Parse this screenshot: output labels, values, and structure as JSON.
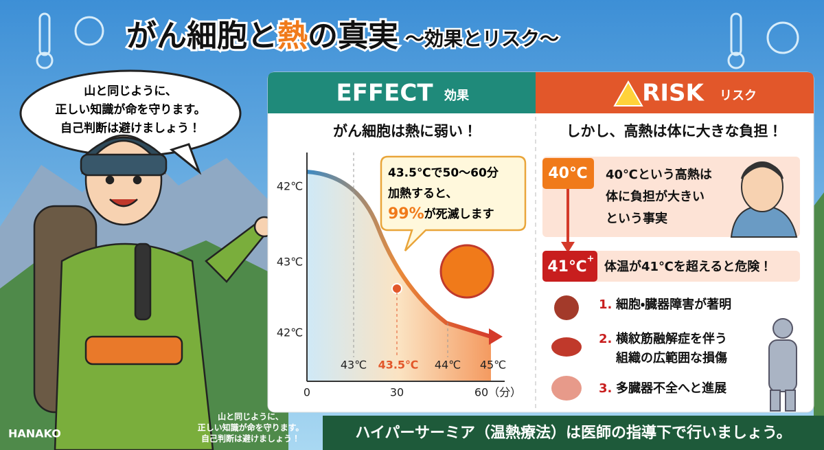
{
  "title": {
    "part1": "がん細胞と",
    "hot": "熱",
    "part2": "の真実",
    "subtitle": "〜効果とリスク〜"
  },
  "speech_bubble": [
    "山と同じように、",
    "正しい知識が命を守ります。",
    "自己判断は避けましょう！"
  ],
  "character": {
    "name": "HANAKO",
    "caption": [
      "山と同じように、",
      "正しい知識が命を守ります。",
      "自己判断は避けましょう！"
    ]
  },
  "effect": {
    "header": "EFFECT",
    "header_jp": "効果",
    "heading": "がん細胞は熱に弱い！",
    "y_labels": [
      "42℃",
      "43℃",
      "42℃"
    ],
    "temp_labels": [
      "43℃",
      "43.5℃",
      "44℃",
      "45℃"
    ],
    "x_labels": [
      "0",
      "30",
      "60（分）"
    ],
    "callout": {
      "line1": "43.5℃で50〜60分",
      "line2": "加熱すると、",
      "highlight": "99%",
      "line3": "が死滅します"
    }
  },
  "risk": {
    "header": "RISK",
    "header_jp": "リスク",
    "heading": "しかし、高熱は体に大きな負担！",
    "fever": {
      "badge": "40℃",
      "lines": [
        "40℃という高熱は",
        "体に負担が大きい",
        "という事実"
      ]
    },
    "danger": {
      "badge": "41℃",
      "sup": "+",
      "text": "体温が41℃を超えると危険！"
    },
    "items": [
      {
        "num": "1.",
        "lines": [
          "細胞・臓器障害が著明"
        ]
      },
      {
        "num": "2.",
        "lines": [
          "横紋筋融解症を伴う",
          "組織の広範囲な損傷"
        ]
      },
      {
        "num": "3.",
        "lines": [
          "多臓器不全へと進展"
        ]
      }
    ]
  },
  "footer": "ハイパーサーミア（温熱療法）は医師の指導下で行いましょう。"
}
